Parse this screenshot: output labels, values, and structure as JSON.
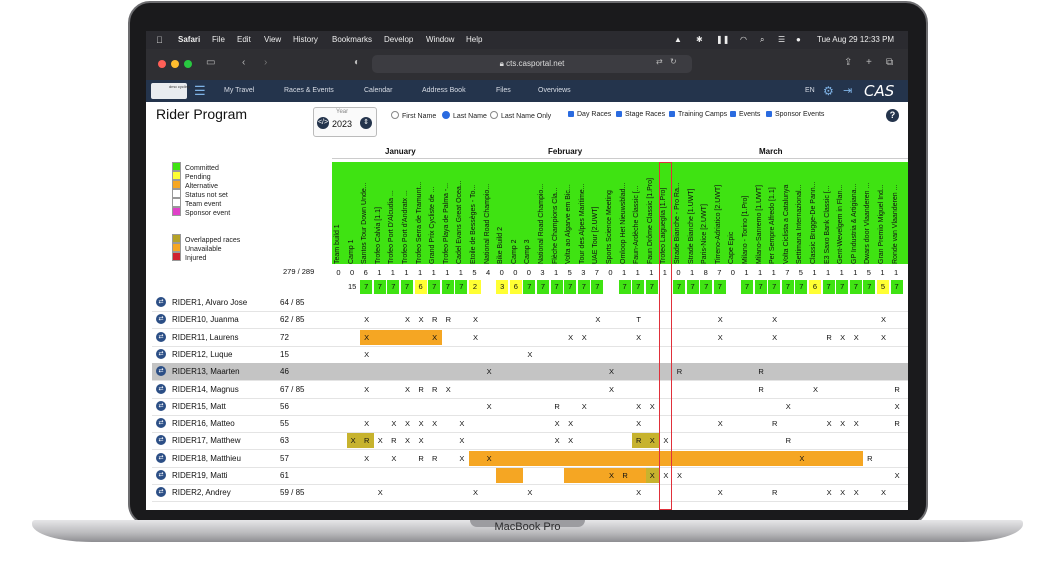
{
  "device": {
    "label": "MacBook Pro"
  },
  "menubar": {
    "apple_icon": "apple-icon",
    "items": [
      "Safari",
      "File",
      "Edit",
      "View",
      "History",
      "Bookmarks",
      "Develop",
      "Window",
      "Help"
    ],
    "clock": "Tue Aug 29  12:33 PM"
  },
  "browser": {
    "url": "cts.casportal.net"
  },
  "nav": {
    "logo_text": "dmo cycling",
    "items": [
      "My Travel",
      "Races & Events",
      "Calendar",
      "Address Book",
      "Files",
      "Overviews"
    ],
    "lang": "EN",
    "brand": "CAS"
  },
  "page": {
    "title": "Rider Program",
    "year_label": "Year",
    "year_value": "2023",
    "name_options": [
      {
        "label": "First Name",
        "selected": false
      },
      {
        "label": "Last Name",
        "selected": true
      },
      {
        "label": "Last Name Only",
        "selected": false
      }
    ],
    "filters": [
      {
        "label": "Day Races",
        "checked": true
      },
      {
        "label": "Stage Races",
        "checked": true
      },
      {
        "label": "Training Camps",
        "checked": true
      },
      {
        "label": "Events",
        "checked": true
      },
      {
        "label": "Sponsor Events",
        "checked": true
      }
    ],
    "help": "?"
  },
  "legend": [
    {
      "label": "Committed",
      "color": "#3fe312"
    },
    {
      "label": "Pending",
      "color": "#ffff33"
    },
    {
      "label": "Alternative",
      "color": "#f5a623"
    },
    {
      "label": "Status not set",
      "color": "#ffffff"
    },
    {
      "label": "Team event",
      "color": "#ffffff"
    },
    {
      "label": "Sponsor event",
      "color": "#e040c8"
    },
    {
      "label": "Overlapped races",
      "color": "#b5a227"
    },
    {
      "label": "Unavailable",
      "color": "#f5a623"
    },
    {
      "label": "Injured",
      "color": "#d0202e"
    }
  ],
  "months": [
    "January",
    "February",
    "March"
  ],
  "races": [
    {
      "name": "Team build 1",
      "count": "0"
    },
    {
      "name": "Camp 1",
      "count": "0"
    },
    {
      "name": "Santos Tour Down Unde...",
      "count": "6"
    },
    {
      "name": "Trofeo Calvia [1.1]",
      "count": "1"
    },
    {
      "name": "Trofeo Port D'Alcudia ...",
      "count": "1"
    },
    {
      "name": "Trofeo Port d'Andratx ...",
      "count": "1"
    },
    {
      "name": "Trofeo Serra de Tramunt...",
      "count": "1"
    },
    {
      "name": "Grand Prix Cycliste de ...",
      "count": "1"
    },
    {
      "name": "Trofeo Playa de Palma -...",
      "count": "1"
    },
    {
      "name": "Cadel Evans Great Ocea...",
      "count": "1"
    },
    {
      "name": "Etoile de Bessèges - To...",
      "count": "5"
    },
    {
      "name": "National Road Champio...",
      "count": "4"
    },
    {
      "name": "Bike Build 2",
      "count": "0"
    },
    {
      "name": "Camp 2",
      "count": "0"
    },
    {
      "name": "Camp 3",
      "count": "0"
    },
    {
      "name": "National Road Champio...",
      "count": "3"
    },
    {
      "name": "Flèche Champions Cla...",
      "count": "1"
    },
    {
      "name": "Volta ao Algarve em Bic...",
      "count": "5"
    },
    {
      "name": "Tour des Alpes Maritime...",
      "count": "3"
    },
    {
      "name": "UAE Tour [2.UWT]",
      "count": "7"
    },
    {
      "name": "Sports Science Meeting",
      "count": "0"
    },
    {
      "name": "Omloop Het Nieuwsblad...",
      "count": "1"
    },
    {
      "name": "Faun-Ardèche Classic [...",
      "count": "1"
    },
    {
      "name": "Faun Drôme Classic [1.Pro]",
      "count": "1"
    },
    {
      "name": "Trofeo Laigueglia [1.Pro]",
      "count": "1"
    },
    {
      "name": "Strade Bianche - Pro Ra...",
      "count": "0"
    },
    {
      "name": "Strade Bianche [1.UWT]",
      "count": "1"
    },
    {
      "name": "Paris-Nice [2.UWT]",
      "count": "8"
    },
    {
      "name": "Tirreno-Adriatico [2.UWT]",
      "count": "7"
    },
    {
      "name": "Cape Epic",
      "count": "0"
    },
    {
      "name": "Milano - Torino [1.Pro]",
      "count": "1"
    },
    {
      "name": "Milano-Sanremo [1.UWT]",
      "count": "1"
    },
    {
      "name": "Per Sempre Alfredo [1.1]",
      "count": "1"
    },
    {
      "name": "Volta Ciclista a Catalunya",
      "count": "7"
    },
    {
      "name": "Settimana Internazional...",
      "count": "5"
    },
    {
      "name": "Classic Brugge-De Pann...",
      "count": "1"
    },
    {
      "name": "E3 Saxo Bank Classic [...",
      "count": "1"
    },
    {
      "name": "Gent-Wevelgem in Flan...",
      "count": "1"
    },
    {
      "name": "GP Industria & Artigiana...",
      "count": "1"
    },
    {
      "name": "Dwars door Vlaanderen ...",
      "count": "5"
    },
    {
      "name": "Gran Premio Miguel Ind...",
      "count": "1"
    },
    {
      "name": "Ronde van Vlaanderen ...",
      "count": "1"
    }
  ],
  "totals": {
    "label": "279 / 289"
  },
  "committed_counts": {
    "first": "15",
    "values": [
      "7",
      "7",
      "7",
      "7",
      "6",
      "7",
      "7",
      "7",
      "2",
      "3",
      "6",
      "7",
      "7",
      "7",
      "7",
      "7",
      "7",
      "7",
      "7",
      "7",
      "7",
      "7",
      "7",
      "7",
      "7",
      "7",
      "7",
      "7",
      "7",
      "6",
      "7",
      "7",
      "7",
      "7",
      "5",
      "7",
      "7"
    ]
  },
  "riders": [
    {
      "name": "RIDER1, Alvaro Jose",
      "score": "64 / 85"
    },
    {
      "name": "RIDER10, Juanma",
      "score": "62 / 85"
    },
    {
      "name": "RIDER11, Laurens",
      "score": "72"
    },
    {
      "name": "RIDER12, Luque",
      "score": "15"
    },
    {
      "name": "RIDER13, Maarten",
      "score": "46"
    },
    {
      "name": "RIDER14, Magnus",
      "score": "67 / 85"
    },
    {
      "name": "RIDER15, Matt",
      "score": "56"
    },
    {
      "name": "RIDER16, Matteo",
      "score": "55"
    },
    {
      "name": "RIDER17, Matthew",
      "score": "63"
    },
    {
      "name": "RIDER18, Matthieu",
      "score": "57"
    },
    {
      "name": "RIDER19, Matti",
      "score": "61"
    },
    {
      "name": "RIDER2, Andrey",
      "score": "59 / 85"
    }
  ],
  "marks": {
    "x": "X",
    "r": "R",
    "t": "T"
  }
}
